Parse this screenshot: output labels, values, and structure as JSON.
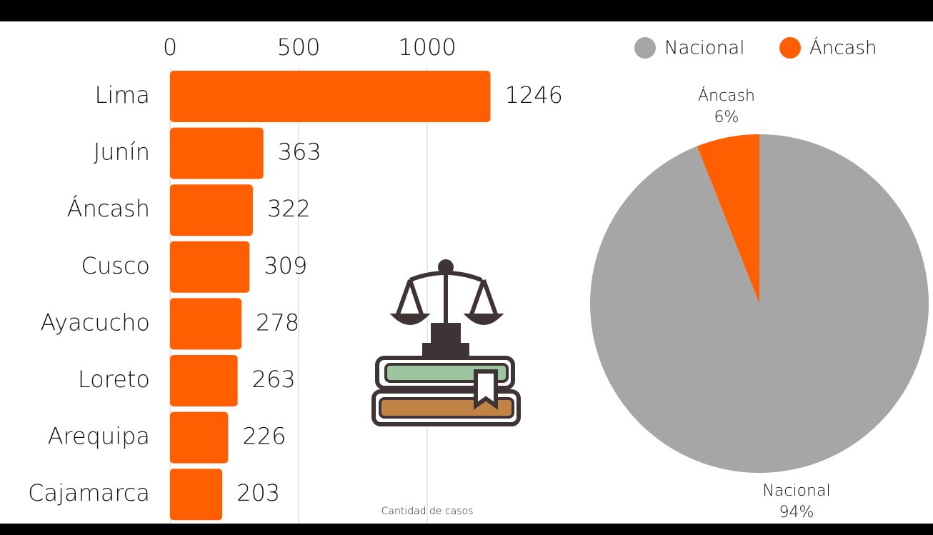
{
  "chart_data": [
    {
      "type": "hbar",
      "categories": [
        "Lima",
        "Junín",
        "Áncash",
        "Cusco",
        "Ayacucho",
        "Loreto",
        "Arequipa",
        "Cajamarca"
      ],
      "values": [
        1246,
        363,
        322,
        309,
        278,
        263,
        226,
        203
      ],
      "color": "#ff5f00",
      "xlim": [
        0,
        1250
      ],
      "xticks": [
        0,
        500,
        1000
      ],
      "grid": true,
      "x_label": "Cantidad de casos"
    },
    {
      "type": "pie",
      "categories": [
        "Nacional",
        "Áncash"
      ],
      "values": [
        94,
        6
      ],
      "value_labels": [
        "94%",
        "6%"
      ],
      "colors": [
        "#a6a6a6",
        "#ff5f00"
      ],
      "legend": "top"
    }
  ]
}
